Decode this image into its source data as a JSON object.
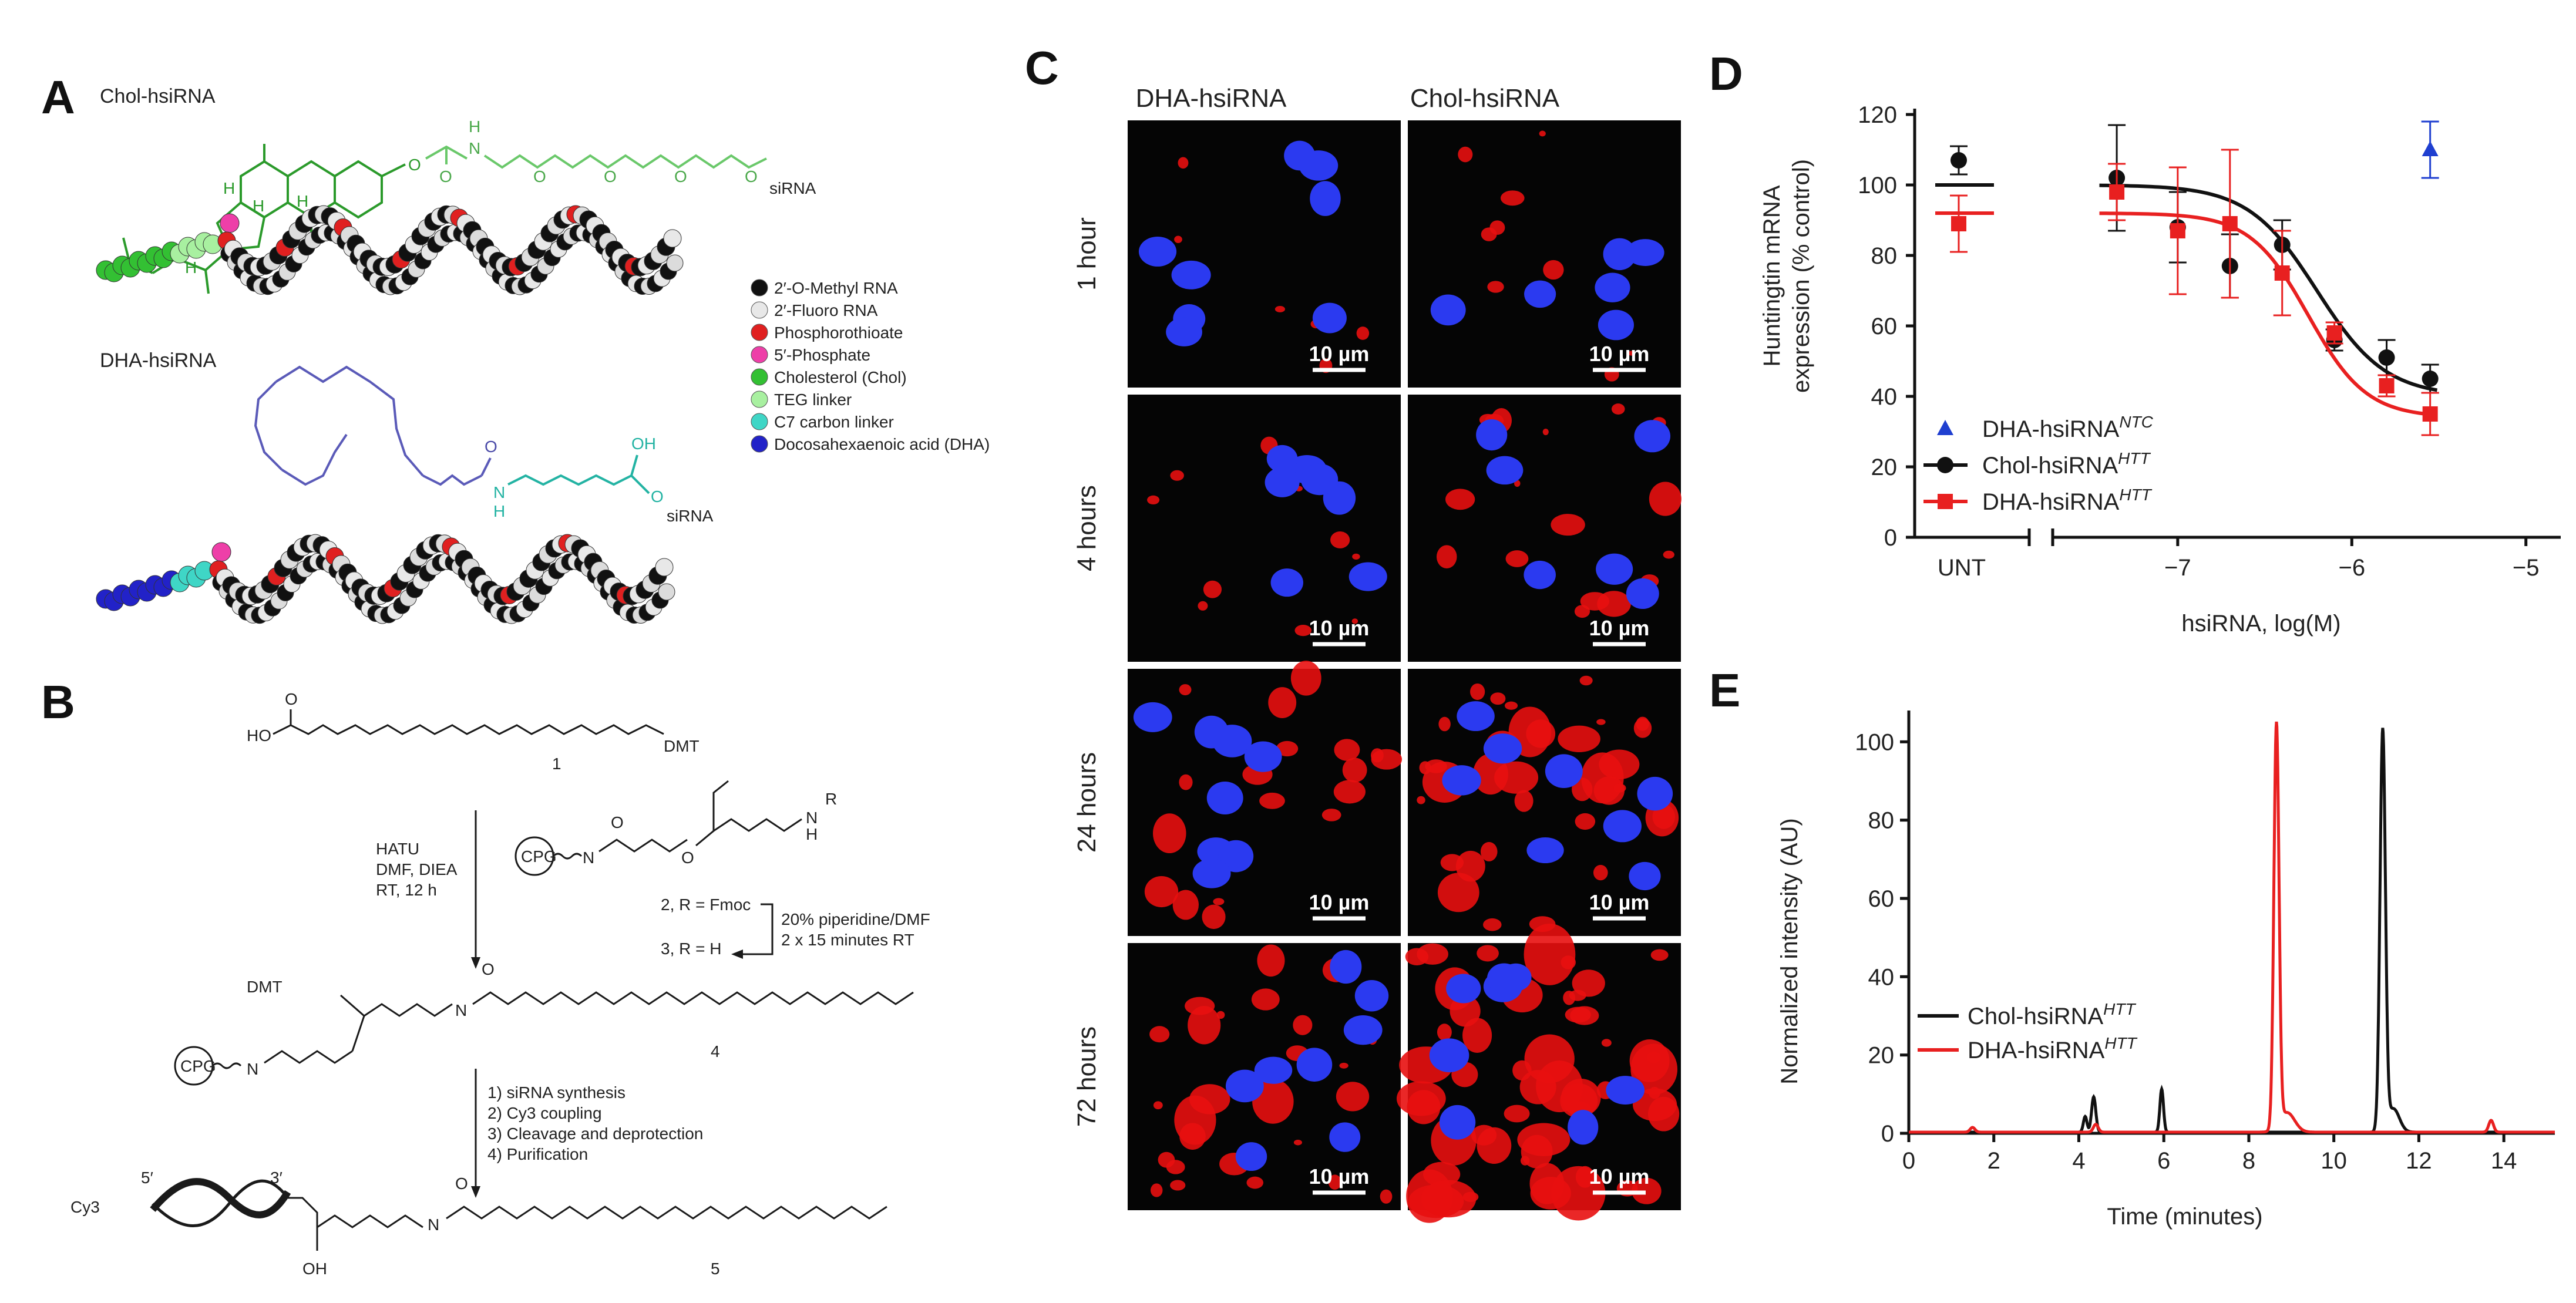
{
  "panels": {
    "a": "A",
    "b": "B",
    "c": "C",
    "d": "D",
    "e": "E"
  },
  "panel_a": {
    "chol_title": "Chol-hsiRNA",
    "dha_title": "DHA-hsiRNA",
    "chol_sirna": "siRNA",
    "dha_sirna": "siRNA",
    "atom_O": "O",
    "atom_N": "N",
    "atom_H": "H",
    "atom_OH": "OH",
    "legend": [
      {
        "label": "2′-O-Methyl RNA",
        "color": "#111111"
      },
      {
        "label": "2′-Fluoro RNA",
        "color": "#e8e8e8"
      },
      {
        "label": "Phosphorothioate",
        "color": "#e02020"
      },
      {
        "label": "5′-Phosphate",
        "color": "#ee3fa8"
      },
      {
        "label": "Cholesterol (Chol)",
        "color": "#33c033"
      },
      {
        "label": "TEG linker",
        "color": "#a8f0a0"
      },
      {
        "label": "C7 carbon linker",
        "color": "#3fd6c6"
      },
      {
        "label": "Docosahexaenoic acid (DHA)",
        "color": "#2222c8"
      }
    ]
  },
  "panel_b": {
    "ho": "HO",
    "o": "O",
    "cmpd1": "1",
    "cmpd4": "4",
    "cmpd5": "5",
    "dmt_o": "DMT",
    "cpg": "CPG",
    "nh_r": "N",
    "r": "R",
    "h": "H",
    "cond1": [
      "HATU",
      "DMF, DIEA",
      "RT, 12 h"
    ],
    "cmpd2": "2, R = Fmoc",
    "cmpd3": "3, R = H",
    "deprot": [
      "20% piperidine/DMF",
      "2 x 15 minutes RT"
    ],
    "steps": [
      "1) siRNA synthesis",
      "2) Cy3 coupling",
      "3) Cleavage and deprotection",
      "4) Purification"
    ],
    "cy3": "Cy3",
    "five_prime": "5′",
    "three_prime": "3′",
    "oh": "OH",
    "nh": "N"
  },
  "panel_c": {
    "col_headers": [
      "DHA-hsiRNA",
      "Chol-hsiRNA"
    ],
    "row_labels": [
      "1 hour",
      "4 hours",
      "24 hours",
      "72 hours"
    ],
    "scale_bar": "10 µm"
  },
  "panel_d": {
    "chart_data": {
      "type": "scatter",
      "ylabel": "Huntingtin mRNA\nexpression (% control)",
      "xlabel": "hsiRNA, log(M)",
      "ylim": [
        0,
        120
      ],
      "xlim": [
        -7.6,
        -4.8
      ],
      "yticks": [
        0,
        20,
        40,
        60,
        80,
        100,
        120
      ],
      "xticks": [
        -7,
        -6,
        -5
      ],
      "xtick_labels": [
        "−7",
        "−6",
        "−5"
      ],
      "unt_label": "UNT",
      "series": [
        {
          "name": "DHA-hsiRNA",
          "name_sup": "NTC",
          "color": "#1f3fd0",
          "marker": "triangle",
          "x": [
            -5.55
          ],
          "y": [
            110
          ],
          "err": [
            8
          ],
          "unt": null
        },
        {
          "name": "Chol-hsiRNA",
          "name_sup": "HTT",
          "color": "#111111",
          "marker": "circle",
          "x": [
            -7.35,
            -7.0,
            -6.7,
            -6.4,
            -6.1,
            -5.8,
            -5.55
          ],
          "y": [
            102,
            88,
            77,
            83,
            56,
            51,
            45
          ],
          "err": [
            15,
            10,
            9,
            7,
            3,
            5,
            4
          ],
          "unt": {
            "y": 107,
            "err": 4,
            "fit": 100
          },
          "fit": {
            "top": 100,
            "bottom": 40,
            "logec50": -6.2,
            "hill": 1.1
          }
        },
        {
          "name": "DHA-hsiRNA",
          "name_sup": "HTT",
          "color": "#e82020",
          "marker": "square",
          "x": [
            -7.35,
            -7.0,
            -6.7,
            -6.4,
            -6.1,
            -5.8,
            -5.55
          ],
          "y": [
            98,
            87,
            89,
            75,
            58,
            43,
            35
          ],
          "err": [
            8,
            18,
            21,
            12,
            3,
            3,
            6
          ],
          "unt": {
            "y": 89,
            "err": 8,
            "fit": 92
          },
          "fit": {
            "top": 92,
            "bottom": 34,
            "logec50": -6.25,
            "hill": 1.3
          }
        }
      ]
    }
  },
  "panel_e": {
    "chart_data": {
      "type": "line",
      "xlabel": "Time (minutes)",
      "ylabel": "Normalized intensity (AU)",
      "xlim": [
        0,
        15.2
      ],
      "ylim": [
        0,
        105
      ],
      "xticks": [
        0,
        2,
        4,
        6,
        8,
        10,
        12,
        14
      ],
      "yticks": [
        0,
        20,
        40,
        60,
        80,
        100
      ],
      "series": [
        {
          "name": "Chol-hsiRNA",
          "name_sup": "HTT",
          "color": "#111111",
          "peaks": [
            {
              "t": 4.35,
              "h": 9,
              "w": 0.07
            },
            {
              "t": 4.15,
              "h": 4,
              "w": 0.06
            },
            {
              "t": 5.95,
              "h": 11,
              "w": 0.06
            },
            {
              "t": 11.15,
              "h": 102,
              "w": 0.09
            },
            {
              "t": 11.4,
              "h": 6,
              "w": 0.2
            }
          ]
        },
        {
          "name": "DHA-hsiRNA",
          "name_sup": "HTT",
          "color": "#e82020",
          "peaks": [
            {
              "t": 8.65,
              "h": 103,
              "w": 0.085
            },
            {
              "t": 8.9,
              "h": 5,
              "w": 0.25
            },
            {
              "t": 4.4,
              "h": 2,
              "w": 0.08
            },
            {
              "t": 13.7,
              "h": 3,
              "w": 0.08
            },
            {
              "t": 1.5,
              "h": 1.2,
              "w": 0.08
            }
          ]
        }
      ]
    }
  }
}
